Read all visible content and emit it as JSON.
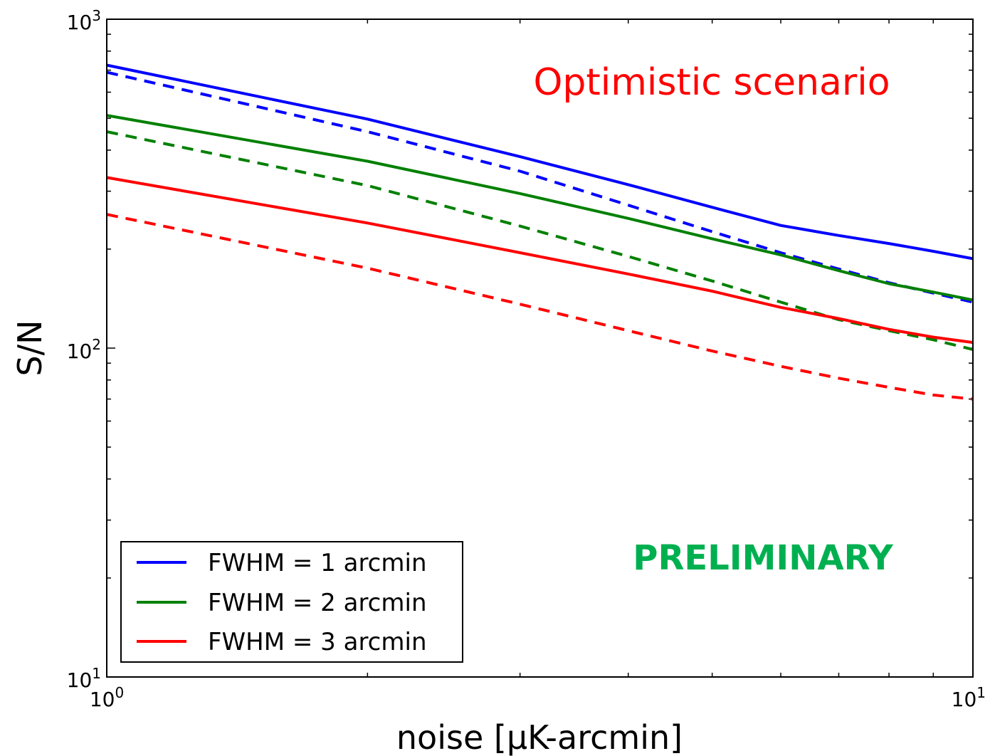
{
  "chart_data": {
    "type": "line",
    "xscale": "log",
    "yscale": "log",
    "xlim": [
      1,
      10
    ],
    "ylim": [
      10,
      1000
    ],
    "xlabel": "noise [μK-arcmin]",
    "ylabel": "S/N",
    "title": "",
    "x_ticks": [
      {
        "value": 1,
        "base": "10",
        "exp": "0"
      },
      {
        "value": 10,
        "base": "10",
        "exp": "1"
      }
    ],
    "y_ticks": [
      {
        "value": 10,
        "base": "10",
        "exp": "1"
      },
      {
        "value": 100,
        "base": "10",
        "exp": "2"
      },
      {
        "value": 1000,
        "base": "10",
        "exp": "3"
      }
    ],
    "annotations": [
      {
        "text": "Optimistic scenario",
        "color": "#ff0000"
      },
      {
        "text": "PRELIMINARY",
        "color": "#00b050"
      }
    ],
    "legend_position": "lower-left",
    "series": [
      {
        "name": "FWHM = 1 arcmin",
        "color": "#0000ff",
        "style": "solid",
        "x": [
          1,
          2,
          3,
          4,
          5,
          6,
          7,
          8,
          9,
          10
        ],
        "y": [
          725,
          497,
          382,
          314,
          268,
          236,
          220,
          208,
          197,
          187
        ]
      },
      {
        "name": "",
        "color": "#0000ff",
        "style": "dashed",
        "x": [
          1,
          2,
          3,
          4,
          5,
          6,
          7,
          8,
          9,
          10
        ],
        "y": [
          690,
          455,
          345,
          272,
          226,
          195,
          174,
          158,
          147,
          138
        ]
      },
      {
        "name": "FWHM = 2 arcmin",
        "color": "#008000",
        "style": "solid",
        "x": [
          1,
          2,
          3,
          4,
          5,
          6,
          7,
          8,
          9,
          10
        ],
        "y": [
          510,
          370,
          295,
          248,
          215,
          192,
          172,
          157,
          148,
          140
        ]
      },
      {
        "name": "",
        "color": "#008000",
        "style": "dashed",
        "x": [
          1,
          2,
          3,
          4,
          5,
          6,
          7,
          8,
          9,
          10
        ],
        "y": [
          455,
          312,
          235,
          190,
          160,
          138,
          122,
          113,
          106,
          99
        ]
      },
      {
        "name": "FWHM = 3 arcmin",
        "color": "#ff0000",
        "style": "solid",
        "x": [
          1,
          2,
          3,
          4,
          5,
          6,
          7,
          8,
          9,
          10
        ],
        "y": [
          330,
          240,
          195,
          168,
          149,
          133,
          123,
          114,
          108,
          104
        ]
      },
      {
        "name": "",
        "color": "#ff0000",
        "style": "dashed",
        "x": [
          1,
          2,
          3,
          4,
          5,
          6,
          7,
          8,
          9,
          10
        ],
        "y": [
          255,
          175,
          136,
          113,
          98,
          88,
          81,
          76,
          72,
          70
        ]
      }
    ]
  }
}
